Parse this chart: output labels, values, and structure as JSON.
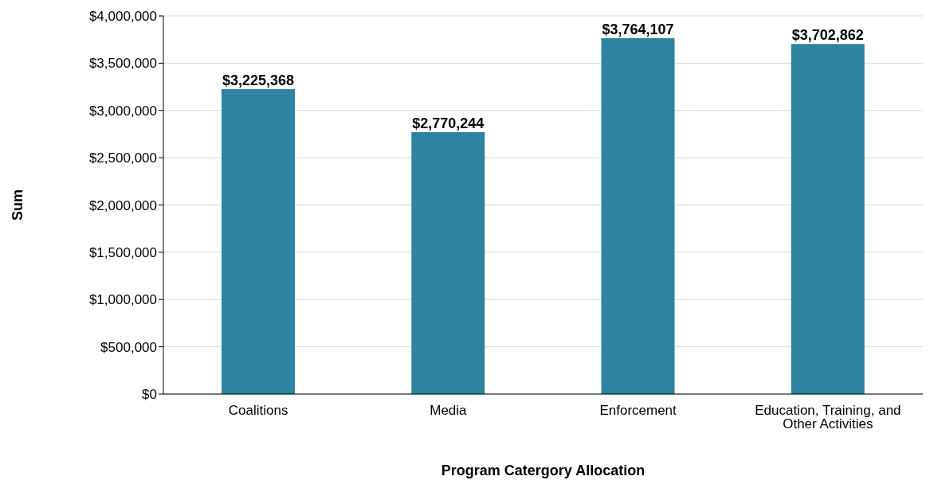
{
  "chart_data": {
    "type": "bar",
    "xlabel": "Program Catergory Allocation",
    "ylabel": "Sum",
    "categories": [
      "Coalitions",
      "Media",
      "Enforcement",
      "Education, Training, and Other Activities"
    ],
    "values": [
      3225368,
      2770244,
      3764107,
      3702862
    ],
    "value_labels": [
      "$3,225,368",
      "$2,770,244",
      "$3,764,107",
      "$3,702,862"
    ],
    "color": "#2e83a0",
    "ylim": [
      0,
      4000000
    ],
    "yticks": [
      {
        "value": 0,
        "label": "$0"
      },
      {
        "value": 500000,
        "label": "$500,000"
      },
      {
        "value": 1000000,
        "label": "$1,000,000"
      },
      {
        "value": 1500000,
        "label": "$1,500,000"
      },
      {
        "value": 2000000,
        "label": "$2,000,000"
      },
      {
        "value": 2500000,
        "label": "$2,500,000"
      },
      {
        "value": 3000000,
        "label": "$3,000,000"
      },
      {
        "value": 3500000,
        "label": "$3,500,000"
      },
      {
        "value": 4000000,
        "label": "$4,000,000"
      }
    ],
    "grid": "y"
  }
}
